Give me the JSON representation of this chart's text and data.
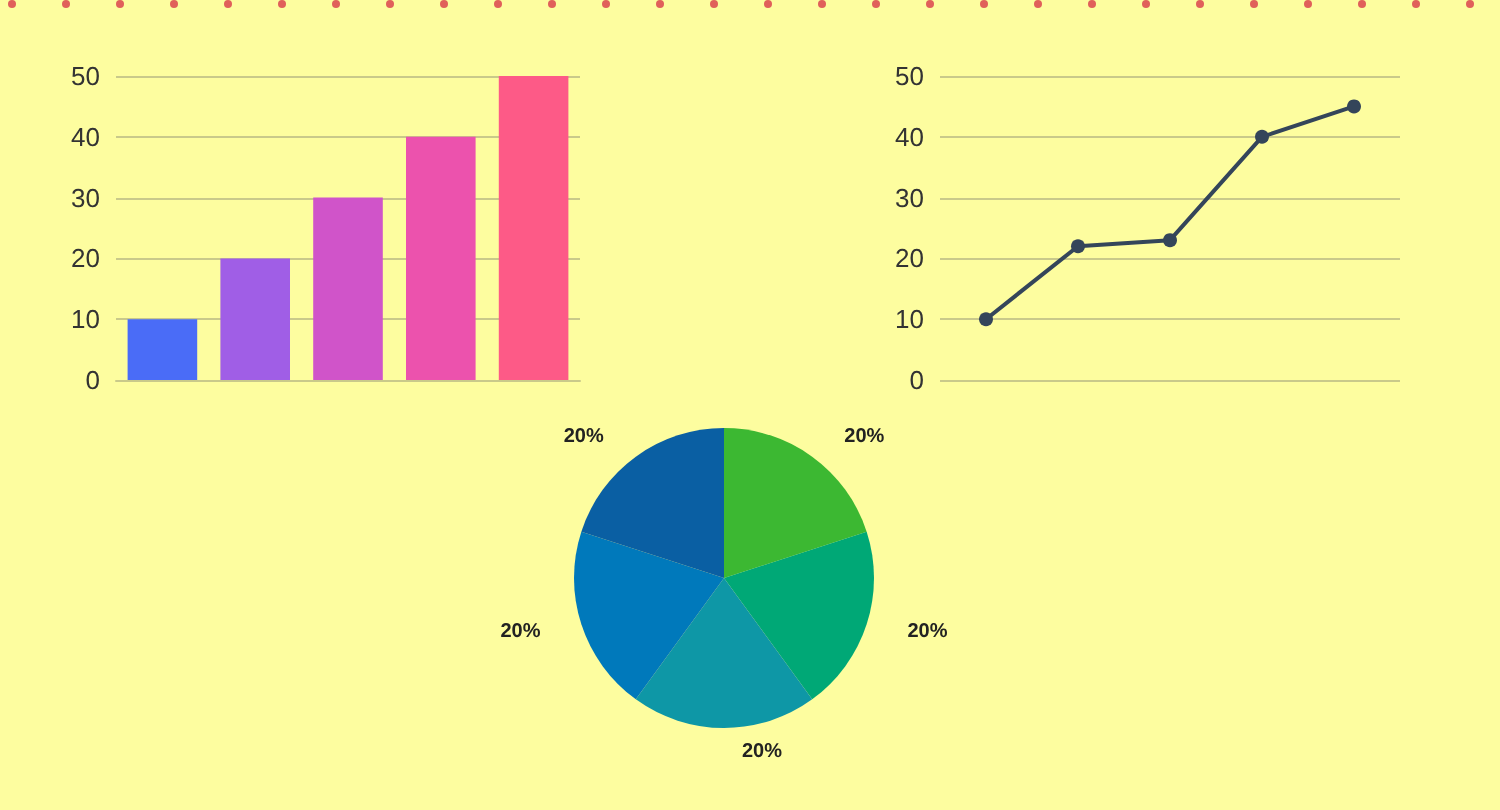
{
  "chart_data": [
    {
      "type": "bar",
      "categories": [
        null,
        null,
        null,
        null,
        null
      ],
      "values": [
        10,
        20,
        30,
        40,
        50
      ],
      "colors": [
        "#4a6cf7",
        "#a05ee6",
        "#d054c9",
        "#ec52ad",
        "#fd5a87"
      ],
      "ylim": [
        0,
        50
      ],
      "yticks": [
        0,
        10,
        20,
        30,
        40,
        50
      ],
      "grid": "y"
    },
    {
      "type": "line",
      "categories": [
        null,
        null,
        null,
        null,
        null
      ],
      "values": [
        10,
        22,
        23,
        40,
        45
      ],
      "color": "#34455a",
      "marker": "circle",
      "ylim": [
        0,
        50
      ],
      "yticks": [
        0,
        10,
        20,
        30,
        40,
        50
      ],
      "grid": "y"
    },
    {
      "type": "pie",
      "categories": [
        null,
        null,
        null,
        null,
        null
      ],
      "values": [
        20,
        20,
        20,
        20,
        20
      ],
      "colors": [
        "#3cb832",
        "#00a876",
        "#0e97a6",
        "#0079bb",
        "#0a5fa3"
      ],
      "value_labels": [
        "20%",
        "20%",
        "20%",
        "20%",
        "20%"
      ]
    }
  ]
}
